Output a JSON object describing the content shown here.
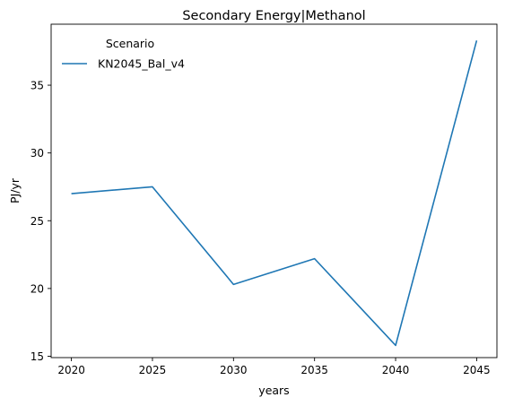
{
  "chart_data": {
    "type": "line",
    "title": "Secondary Energy|Methanol",
    "xlabel": "years",
    "ylabel": "PJ/yr",
    "x": [
      2020,
      2025,
      2030,
      2035,
      2040,
      2045
    ],
    "xticks": [
      "2020",
      "2025",
      "2030",
      "2035",
      "2040",
      "2045"
    ],
    "yticks": [
      "15",
      "20",
      "25",
      "30",
      "35"
    ],
    "xlim": [
      2018.75,
      2046.25
    ],
    "ylim": [
      14.9,
      39.5
    ],
    "grid": false,
    "legend": {
      "title": "Scenario",
      "placement": "top-left"
    },
    "series": [
      {
        "name": "KN2045_Bal_v4",
        "color": "#1f77b4",
        "values": [
          27.0,
          27.5,
          20.3,
          22.2,
          15.8,
          38.3
        ]
      }
    ]
  }
}
